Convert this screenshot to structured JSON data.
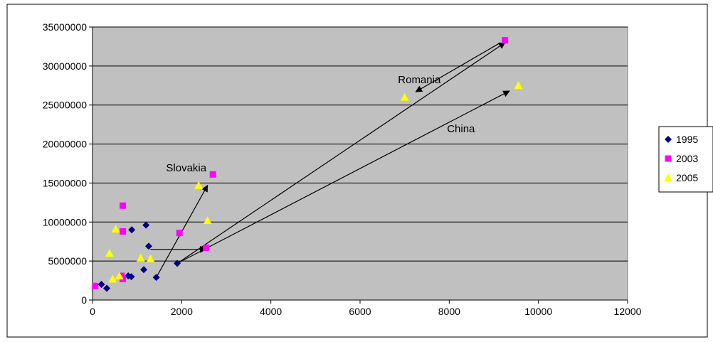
{
  "chart_data": {
    "type": "scatter",
    "xlim": [
      0,
      12000
    ],
    "ylim": [
      0,
      35000000
    ],
    "x_ticks": [
      "0",
      "2000",
      "4000",
      "6000",
      "8000",
      "10000",
      "12000"
    ],
    "y_ticks": [
      "0",
      "5000000",
      "10000000",
      "15000000",
      "20000000",
      "25000000",
      "30000000",
      "35000000"
    ],
    "grid": true,
    "legend_position": "right",
    "plot_background": "#c0c0c0",
    "series": [
      {
        "name": "1995",
        "marker": "diamond",
        "color": "#000080",
        "points": [
          [
            200,
            2000000
          ],
          [
            320,
            1500000
          ],
          [
            800,
            3100000
          ],
          [
            870,
            3000000
          ],
          [
            880,
            9000000
          ],
          [
            1150,
            3900000
          ],
          [
            1200,
            9600000
          ],
          [
            1260,
            6900000
          ],
          [
            1430,
            2900000
          ],
          [
            1900,
            4700000
          ]
        ]
      },
      {
        "name": "2003",
        "marker": "square",
        "color": "#ff00ff",
        "points": [
          [
            60,
            1800000
          ],
          [
            650,
            3100000
          ],
          [
            680,
            2700000
          ],
          [
            680,
            8800000
          ],
          [
            680,
            12100000
          ],
          [
            1950,
            8600000
          ],
          [
            2550,
            6700000
          ],
          [
            2700,
            16100000
          ],
          [
            9250,
            33300000
          ]
        ]
      },
      {
        "name": "2005",
        "marker": "triangle",
        "color": "#ffff00",
        "points": [
          [
            380,
            6000000
          ],
          [
            450,
            2700000
          ],
          [
            520,
            9100000
          ],
          [
            600,
            3100000
          ],
          [
            1080,
            5400000
          ],
          [
            1300,
            5300000
          ],
          [
            2380,
            14700000
          ],
          [
            2580,
            10200000
          ],
          [
            7000,
            26000000
          ],
          [
            9550,
            27500000
          ]
        ]
      }
    ],
    "annotations": [
      {
        "text": "Romania",
        "x": 6850,
        "y": 27800000
      },
      {
        "text": "China",
        "x": 7950,
        "y": 21500000
      },
      {
        "text": "Slovakia",
        "x": 1650,
        "y": 16500000
      }
    ],
    "arrows": [
      {
        "from": [
          1430,
          2900000
        ],
        "to": [
          2580,
          14700000
        ]
      },
      {
        "from": [
          1900,
          4700000
        ],
        "to": [
          9250,
          33000000
        ]
      },
      {
        "from": [
          1900,
          4700000
        ],
        "to": [
          9350,
          26800000
        ]
      },
      {
        "from": [
          9150,
          33000000
        ],
        "to": [
          7250,
          26700000
        ]
      },
      {
        "from": [
          1300,
          6500000
        ],
        "to": [
          2550,
          6500000
        ]
      }
    ]
  }
}
